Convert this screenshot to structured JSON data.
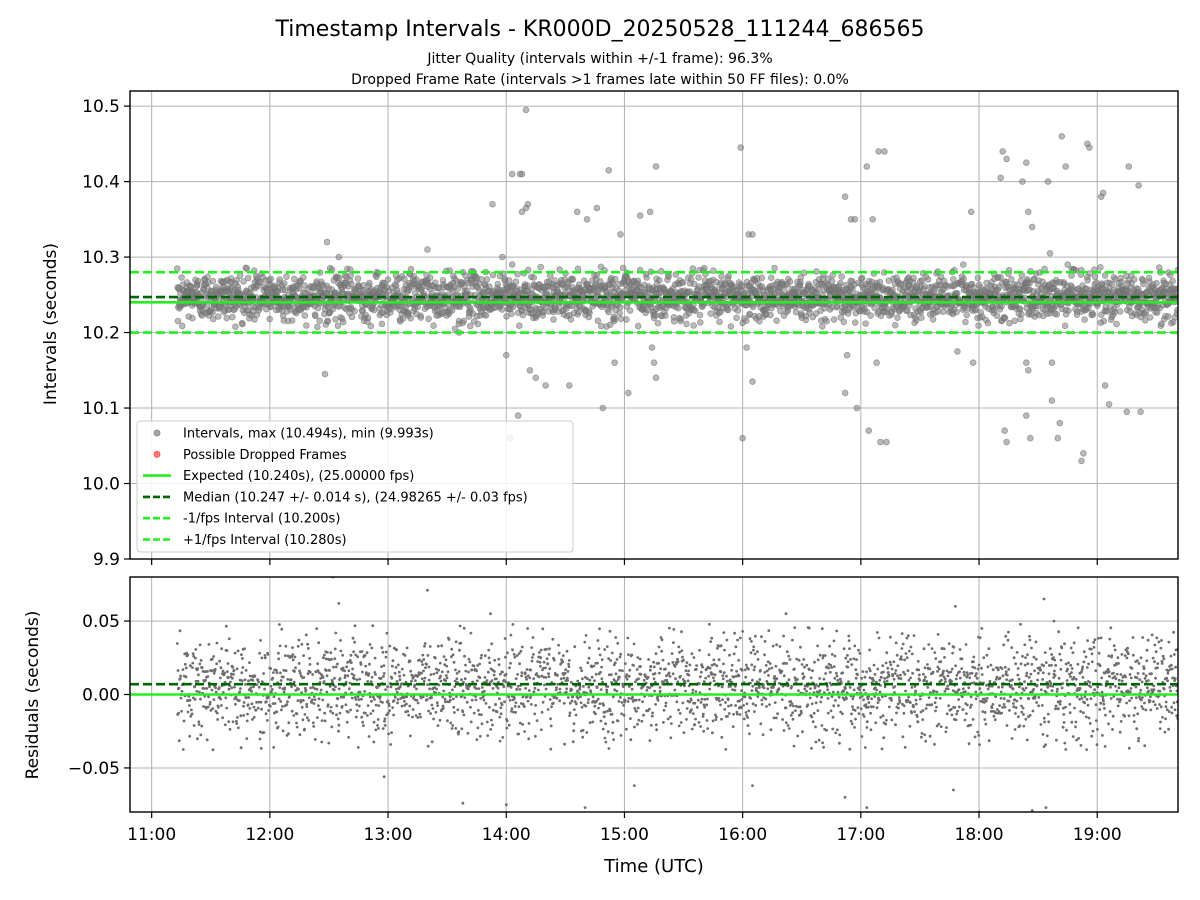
{
  "chart_data": [
    {
      "type": "scatter",
      "title": "Timestamp Intervals - KR000D_20250528_111244_686565",
      "subtitle": "Jitter Quality (intervals within +/-1 frame): 96.3%",
      "subtitle2": "Dropped Frame Rate (intervals >1 frames late within 50 FF files): 0.0%",
      "xlabel": "",
      "ylabel": "Intervals (seconds)",
      "xlim": [
        "10:49",
        "19:41"
      ],
      "ylim": [
        9.9,
        10.52
      ],
      "x_ticks": [
        "11:00",
        "12:00",
        "13:00",
        "14:00",
        "15:00",
        "16:00",
        "17:00",
        "18:00",
        "19:00"
      ],
      "y_ticks": [
        "9.9",
        "10.0",
        "10.1",
        "10.2",
        "10.3",
        "10.4",
        "10.5"
      ],
      "y_tick_values": [
        9.9,
        10.0,
        10.1,
        10.2,
        10.3,
        10.4,
        10.5
      ],
      "grid": true,
      "legend_position": "lower-left",
      "data_start": "11:13",
      "data_end": "19:41",
      "point_count_approx": 2980,
      "core_band": [
        10.215,
        10.28
      ],
      "reference_lines": [
        {
          "name": "Expected (10.240s), (25.00000 fps)",
          "value": 10.24,
          "style": "solid",
          "color": "#22ee22"
        },
        {
          "name": "Median (10.247 +/- 0.014 s), (24.98265 +/- 0.03 fps)",
          "value": 10.247,
          "style": "dashed",
          "color": "#006400"
        },
        {
          "name": "-1/fps Interval (10.200s)",
          "value": 10.2,
          "style": "dashed",
          "color": "#22ee22"
        },
        {
          "name": "+1/fps Interval (10.280s)",
          "value": 10.28,
          "style": "dashed",
          "color": "#22ee22"
        }
      ],
      "legend": [
        {
          "label": "Intervals, max (10.494s), min (9.993s)",
          "kind": "marker",
          "color": "#808080"
        },
        {
          "label": "Possible Dropped Frames",
          "kind": "marker",
          "color": "#ff4444"
        },
        {
          "label": "Expected (10.240s), (25.00000 fps)",
          "kind": "line",
          "style": "solid",
          "color": "#22ee22"
        },
        {
          "label": "Median (10.247 +/- 0.014 s), (24.98265 +/- 0.03 fps)",
          "kind": "line",
          "style": "dashed",
          "color": "#006400"
        },
        {
          "label": "-1/fps Interval (10.200s)",
          "kind": "line",
          "style": "dashed",
          "color": "#22ee22"
        },
        {
          "label": "+1/fps Interval (10.280s)",
          "kind": "line",
          "style": "dashed",
          "color": "#22ee22"
        }
      ],
      "outliers": [
        [
          "11:42",
          10.245
        ],
        [
          "12:29",
          10.32
        ],
        [
          "12:35",
          10.3
        ],
        [
          "12:28",
          10.145
        ],
        [
          "13:20",
          10.31
        ],
        [
          "13:30",
          10.26
        ],
        [
          "13:38",
          10.28
        ],
        [
          "13:42",
          10.275
        ],
        [
          "13:34",
          10.205
        ],
        [
          "13:36",
          10.2
        ],
        [
          "13:53",
          10.37
        ],
        [
          "13:58",
          10.3
        ],
        [
          "14:00",
          10.17
        ],
        [
          "14:10",
          10.365
        ],
        [
          "14:11",
          10.37
        ],
        [
          "14:08",
          10.36
        ],
        [
          "14:10",
          10.495
        ],
        [
          "14:03",
          10.29
        ],
        [
          "14:08",
          10.41
        ],
        [
          "14:07",
          10.41
        ],
        [
          "14:03",
          10.41
        ],
        [
          "14:02",
          10.06
        ],
        [
          "14:06",
          10.09
        ],
        [
          "14:12",
          10.15
        ],
        [
          "14:15",
          10.14
        ],
        [
          "14:20",
          10.13
        ],
        [
          "14:32",
          10.13
        ],
        [
          "14:36",
          10.36
        ],
        [
          "14:41",
          10.35
        ],
        [
          "14:49",
          10.1
        ],
        [
          "14:52",
          10.415
        ],
        [
          "14:46",
          10.365
        ],
        [
          "14:58",
          10.33
        ],
        [
          "14:55",
          10.16
        ],
        [
          "15:02",
          10.12
        ],
        [
          "15:08",
          10.355
        ],
        [
          "15:13",
          10.36
        ],
        [
          "15:16",
          10.42
        ],
        [
          "15:15",
          10.16
        ],
        [
          "15:16",
          10.14
        ],
        [
          "15:14",
          10.18
        ],
        [
          "15:59",
          10.445
        ],
        [
          "16:03",
          10.33
        ],
        [
          "16:05",
          10.33
        ],
        [
          "16:02",
          10.18
        ],
        [
          "16:05",
          10.135
        ],
        [
          "16:00",
          10.06
        ],
        [
          "16:52",
          10.38
        ],
        [
          "16:55",
          10.35
        ],
        [
          "16:57",
          10.35
        ],
        [
          "16:53",
          10.17
        ],
        [
          "16:52",
          10.12
        ],
        [
          "16:58",
          10.1
        ],
        [
          "17:03",
          10.42
        ],
        [
          "17:06",
          10.35
        ],
        [
          "17:09",
          10.44
        ],
        [
          "17:12",
          10.44
        ],
        [
          "17:08",
          10.16
        ],
        [
          "17:04",
          10.07
        ],
        [
          "17:10",
          10.055
        ],
        [
          "17:13",
          10.055
        ],
        [
          "17:56",
          10.36
        ],
        [
          "17:57",
          10.16
        ],
        [
          "17:49",
          10.175
        ],
        [
          "17:52",
          10.29
        ],
        [
          "18:12",
          10.44
        ],
        [
          "18:14",
          10.43
        ],
        [
          "18:11",
          10.405
        ],
        [
          "18:13",
          10.07
        ],
        [
          "18:14",
          10.055
        ],
        [
          "18:22",
          10.4
        ],
        [
          "18:24",
          10.425
        ],
        [
          "18:25",
          10.36
        ],
        [
          "18:27",
          10.34
        ],
        [
          "18:24",
          10.16
        ],
        [
          "18:25",
          10.15
        ],
        [
          "18:24",
          10.09
        ],
        [
          "18:26",
          10.06
        ],
        [
          "18:35",
          10.4
        ],
        [
          "18:36",
          10.305
        ],
        [
          "18:37",
          10.16
        ],
        [
          "18:37",
          10.11
        ],
        [
          "18:40",
          10.06
        ],
        [
          "18:41",
          10.08
        ],
        [
          "18:42",
          10.46
        ],
        [
          "18:44",
          10.42
        ],
        [
          "18:45",
          10.29
        ],
        [
          "18:55",
          10.45
        ],
        [
          "18:56",
          10.445
        ],
        [
          "18:53",
          10.04
        ],
        [
          "18:52",
          10.03
        ],
        [
          "19:02",
          10.38
        ],
        [
          "19:03",
          10.385
        ],
        [
          "19:06",
          10.105
        ],
        [
          "19:04",
          10.13
        ],
        [
          "19:16",
          10.42
        ],
        [
          "19:21",
          10.395
        ],
        [
          "19:15",
          10.095
        ],
        [
          "19:22",
          10.095
        ]
      ]
    },
    {
      "type": "scatter",
      "xlabel": "Time (UTC)",
      "ylabel": "Residuals (seconds)",
      "xlim": [
        "10:49",
        "19:41"
      ],
      "ylim": [
        -0.08,
        0.08
      ],
      "x_ticks": [
        "11:00",
        "12:00",
        "13:00",
        "14:00",
        "15:00",
        "16:00",
        "17:00",
        "18:00",
        "19:00"
      ],
      "y_ticks": [
        "−0.05",
        "0.00",
        "0.05"
      ],
      "y_tick_values": [
        -0.05,
        0.0,
        0.05
      ],
      "grid": true,
      "reference_lines": [
        {
          "value": 0.0,
          "style": "solid",
          "color": "#22ee22"
        },
        {
          "value": 0.007,
          "style": "dashed",
          "color": "#006400"
        }
      ],
      "core_band": [
        -0.03,
        0.04
      ],
      "outliers": [
        [
          "12:35",
          0.062
        ],
        [
          "12:32",
          0.08
        ],
        [
          "13:20",
          0.071
        ],
        [
          "12:58",
          -0.056
        ],
        [
          "13:38",
          -0.074
        ],
        [
          "13:52",
          0.055
        ],
        [
          "14:00",
          -0.075
        ],
        [
          "14:40",
          -0.077
        ],
        [
          "15:05",
          -0.062
        ],
        [
          "16:05",
          -0.062
        ],
        [
          "16:22",
          0.055
        ],
        [
          "16:52",
          -0.07
        ],
        [
          "17:03",
          -0.077
        ],
        [
          "17:48",
          0.06
        ],
        [
          "17:47",
          -0.065
        ],
        [
          "18:00",
          -0.08
        ],
        [
          "18:27",
          -0.079
        ],
        [
          "18:33",
          0.065
        ],
        [
          "18:38",
          0.05
        ],
        [
          "18:34",
          -0.077
        ]
      ]
    }
  ]
}
